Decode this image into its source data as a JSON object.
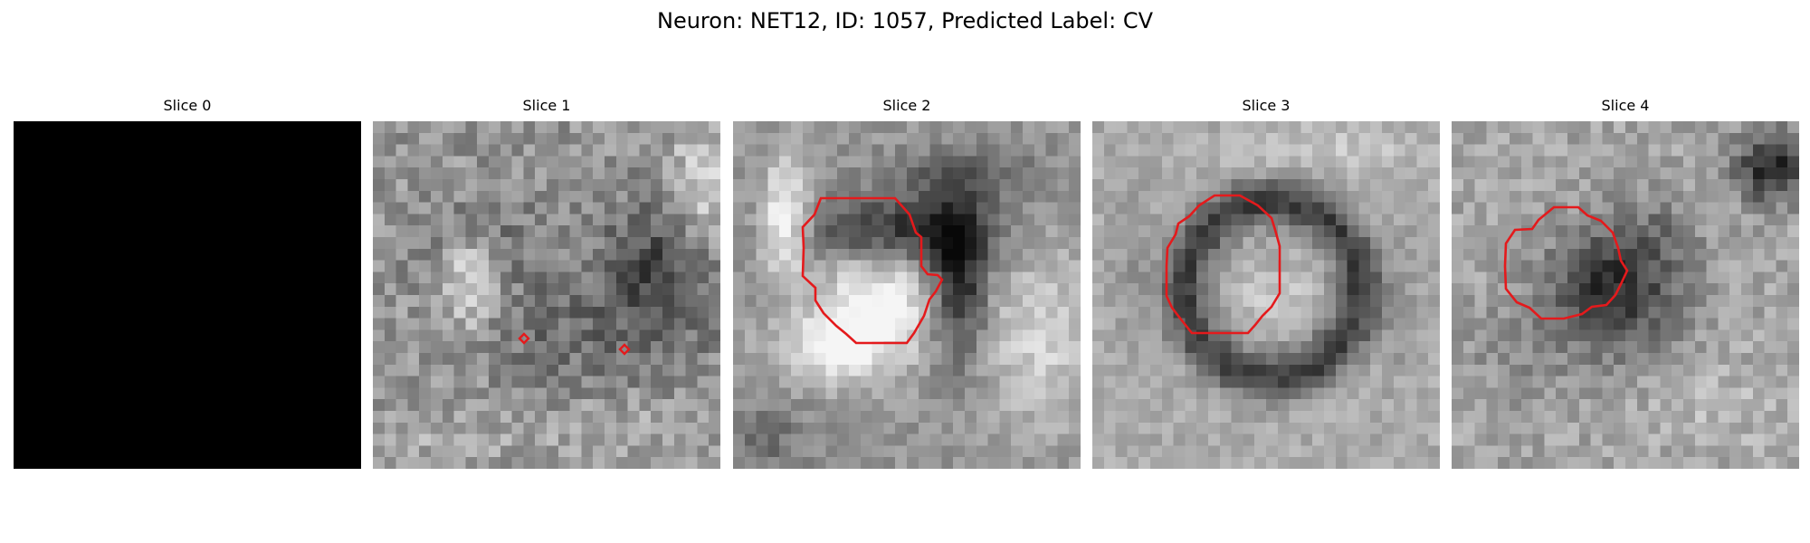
{
  "title": "Neuron: NET12, ID: 1057, Predicted Label: CV",
  "colors": {
    "contour": "#e41a1c",
    "background": "#ffffff"
  },
  "panels": [
    {
      "title": "Slice 0",
      "content": "blank-black-image",
      "contour": false
    },
    {
      "title": "Slice 1",
      "content": "grayscale-noise-image",
      "contour": true
    },
    {
      "title": "Slice 2",
      "content": "grayscale-noise-image",
      "contour": true
    },
    {
      "title": "Slice 3",
      "content": "grayscale-noise-image",
      "contour": true
    },
    {
      "title": "Slice 4",
      "content": "grayscale-noise-image",
      "contour": true
    }
  ]
}
